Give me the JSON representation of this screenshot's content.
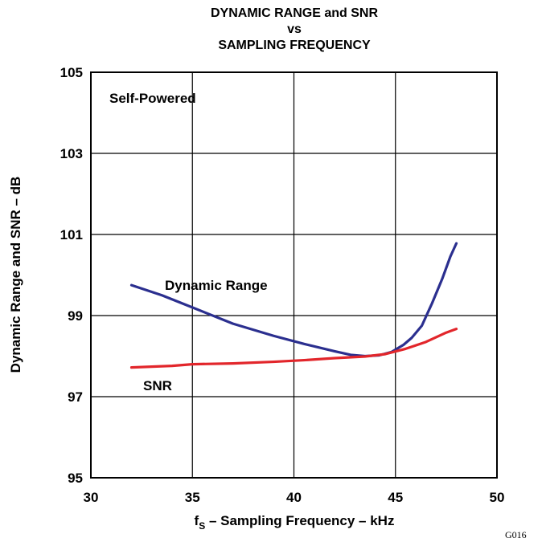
{
  "chart_data": {
    "type": "line",
    "title_lines": [
      "DYNAMIC RANGE and SNR",
      "vs",
      "SAMPLING FREQUENCY"
    ],
    "xlabel": {
      "prefix": "f",
      "subscript": "S",
      "rest": " – Sampling Frequency – kHz"
    },
    "ylabel": "Dynamic Range and SNR – dB",
    "xlim": [
      30,
      50
    ],
    "ylim": [
      95,
      105
    ],
    "xticks": [
      30,
      35,
      40,
      45,
      50
    ],
    "yticks": [
      95,
      97,
      99,
      101,
      103,
      105
    ],
    "grid": true,
    "annotation": "Self-Powered",
    "figure_code": "G016",
    "colors": {
      "dynamic_range": "#2b2f8f",
      "snr": "#e2262b",
      "grid": "#000000"
    },
    "series": [
      {
        "name": "Dynamic Range",
        "x": [
          32,
          33.5,
          35,
          37,
          39,
          40.5,
          42,
          42.8,
          43.5,
          44.2,
          44.8,
          45.4,
          45.8,
          46.3,
          46.8,
          47.3,
          47.7,
          48
        ],
        "y": [
          99.75,
          99.5,
          99.2,
          98.8,
          98.5,
          98.3,
          98.12,
          98.03,
          98.0,
          98.02,
          98.1,
          98.28,
          98.45,
          98.75,
          99.3,
          99.9,
          100.45,
          100.78
        ]
      },
      {
        "name": "SNR",
        "x": [
          32,
          34,
          35,
          37,
          39,
          40.5,
          42,
          43.5,
          44.5,
          45.5,
          46.5,
          47.5,
          48
        ],
        "y": [
          97.72,
          97.76,
          97.8,
          97.82,
          97.86,
          97.9,
          97.95,
          97.99,
          98.05,
          98.18,
          98.35,
          98.58,
          98.67
        ]
      }
    ]
  }
}
